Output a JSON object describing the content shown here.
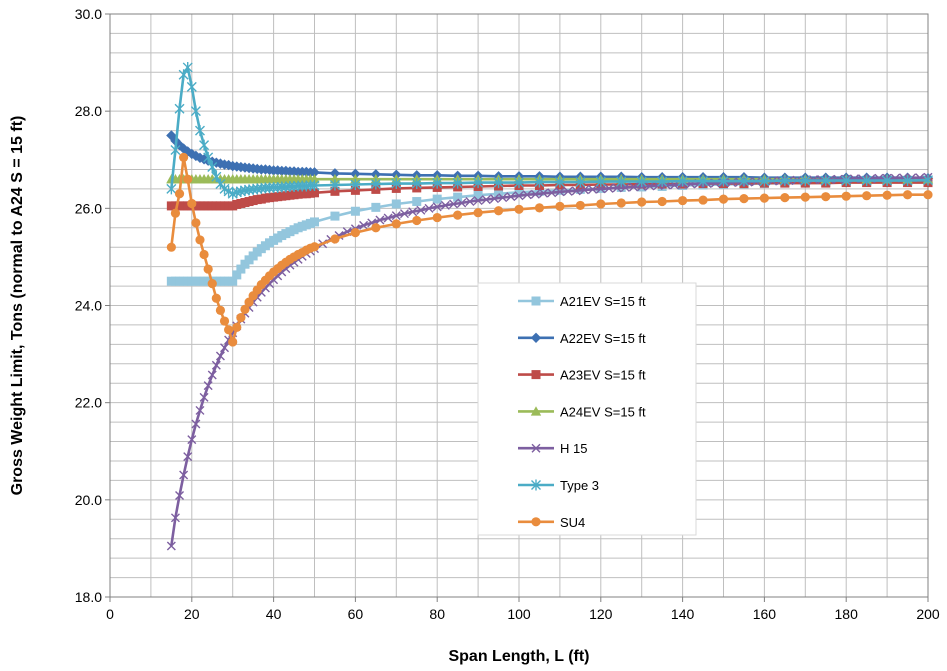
{
  "chart_data": {
    "type": "line",
    "title": "",
    "xlabel": "Span Length, L (ft)",
    "ylabel": "Gross Weight Limit, Tons (normal to A24 S = 15 ft)",
    "xlim": [
      0,
      200
    ],
    "ylim": [
      18.0,
      30.0
    ],
    "x_ticks": [
      0,
      20,
      40,
      60,
      80,
      100,
      120,
      140,
      160,
      180,
      200
    ],
    "y_ticks": [
      18.0,
      20.0,
      22.0,
      24.0,
      26.0,
      28.0,
      30.0
    ],
    "x_tick_labels": [
      "0",
      "20",
      "40",
      "60",
      "80",
      "100",
      "120",
      "140",
      "160",
      "180",
      "200"
    ],
    "y_tick_labels": [
      "18.0",
      "20.0",
      "22.0",
      "24.0",
      "26.0",
      "28.0",
      "30.0"
    ],
    "grid": true,
    "legend_position": "center-right",
    "series": [
      {
        "name": "A21EV S=15 ft",
        "color": "#93c6dd",
        "marker": "square",
        "x": [
          15,
          16,
          17,
          18,
          19,
          20,
          21,
          22,
          23,
          24,
          25,
          26,
          27,
          28,
          29,
          30,
          31,
          32,
          33,
          34,
          35,
          36,
          37,
          38,
          39,
          40,
          41,
          42,
          43,
          44,
          45,
          46,
          47,
          48,
          49,
          50,
          55,
          60,
          65,
          70,
          75,
          80,
          85,
          90,
          95,
          100,
          105,
          110,
          115,
          120,
          125,
          130,
          135,
          140,
          145,
          150,
          155,
          160,
          165,
          170,
          175,
          180,
          185,
          190,
          195,
          200
        ],
        "y": [
          24.5,
          24.5,
          24.5,
          24.5,
          24.5,
          24.5,
          24.5,
          24.5,
          24.5,
          24.5,
          24.5,
          24.5,
          24.5,
          24.5,
          24.5,
          24.5,
          24.63,
          24.75,
          24.85,
          24.94,
          25.02,
          25.1,
          25.17,
          25.23,
          25.29,
          25.34,
          25.39,
          25.44,
          25.48,
          25.52,
          25.56,
          25.6,
          25.63,
          25.66,
          25.69,
          25.72,
          25.84,
          25.94,
          26.02,
          26.09,
          26.14,
          26.19,
          26.23,
          26.27,
          26.3,
          26.33,
          26.35,
          26.37,
          26.39,
          26.41,
          26.43,
          26.44,
          26.45,
          26.47,
          26.48,
          26.49,
          26.5,
          26.51,
          26.52,
          26.52,
          26.53,
          26.54,
          26.54,
          26.55,
          26.55,
          26.56
        ]
      },
      {
        "name": "A22EV S=15 ft",
        "color": "#3d70b2",
        "marker": "diamond",
        "x": [
          15,
          16,
          17,
          18,
          19,
          20,
          21,
          22,
          23,
          24,
          25,
          26,
          27,
          28,
          29,
          30,
          31,
          32,
          33,
          34,
          35,
          36,
          37,
          38,
          39,
          40,
          41,
          42,
          43,
          44,
          45,
          46,
          47,
          48,
          49,
          50,
          55,
          60,
          65,
          70,
          75,
          80,
          85,
          90,
          95,
          100,
          105,
          110,
          115,
          120,
          125,
          130,
          135,
          140,
          145,
          150,
          155,
          160,
          165,
          170,
          175,
          180,
          185,
          190,
          195,
          200
        ],
        "y": [
          27.5,
          27.39,
          27.3,
          27.23,
          27.17,
          27.12,
          27.08,
          27.04,
          27.01,
          26.98,
          26.96,
          26.94,
          26.92,
          26.9,
          26.89,
          26.87,
          26.86,
          26.85,
          26.84,
          26.83,
          26.82,
          26.81,
          26.8,
          26.8,
          26.79,
          26.78,
          26.78,
          26.77,
          26.77,
          26.76,
          26.76,
          26.75,
          26.75,
          26.75,
          26.74,
          26.74,
          26.72,
          26.71,
          26.7,
          26.69,
          26.68,
          26.68,
          26.67,
          26.67,
          26.66,
          26.66,
          26.66,
          26.65,
          26.65,
          26.65,
          26.65,
          26.64,
          26.64,
          26.64,
          26.64,
          26.64,
          26.64,
          26.63,
          26.63,
          26.63,
          26.63,
          26.63,
          26.63,
          26.63,
          26.63,
          26.62
        ]
      },
      {
        "name": "A23EV S=15 ft",
        "color": "#be4b48",
        "marker": "square",
        "x": [
          15,
          16,
          17,
          18,
          19,
          20,
          21,
          22,
          23,
          24,
          25,
          26,
          27,
          28,
          29,
          30,
          31,
          32,
          33,
          34,
          35,
          36,
          37,
          38,
          39,
          40,
          41,
          42,
          43,
          44,
          45,
          46,
          47,
          48,
          49,
          50,
          55,
          60,
          65,
          70,
          75,
          80,
          85,
          90,
          95,
          100,
          105,
          110,
          115,
          120,
          125,
          130,
          135,
          140,
          145,
          150,
          155,
          160,
          165,
          170,
          175,
          180,
          185,
          190,
          195,
          200
        ],
        "y": [
          26.05,
          26.05,
          26.05,
          26.05,
          26.05,
          26.05,
          26.05,
          26.05,
          26.05,
          26.05,
          26.05,
          26.05,
          26.05,
          26.05,
          26.05,
          26.05,
          26.08,
          26.1,
          26.12,
          26.14,
          26.16,
          26.18,
          26.19,
          26.21,
          26.22,
          26.23,
          26.24,
          26.25,
          26.26,
          26.27,
          26.28,
          26.29,
          26.3,
          26.3,
          26.31,
          26.32,
          26.35,
          26.37,
          26.39,
          26.41,
          26.42,
          26.43,
          26.44,
          26.45,
          26.46,
          26.47,
          26.47,
          26.48,
          26.48,
          26.49,
          26.49,
          26.5,
          26.5,
          26.5,
          26.51,
          26.51,
          26.51,
          26.52,
          26.52,
          26.52,
          26.52,
          26.53,
          26.53,
          26.53,
          26.53,
          26.53
        ]
      },
      {
        "name": "A24EV S=15 ft",
        "color": "#9bbb59",
        "marker": "triangle",
        "x": [
          15,
          16,
          17,
          18,
          19,
          20,
          21,
          22,
          23,
          24,
          25,
          26,
          27,
          28,
          29,
          30,
          31,
          32,
          33,
          34,
          35,
          36,
          37,
          38,
          39,
          40,
          41,
          42,
          43,
          44,
          45,
          46,
          47,
          48,
          49,
          50,
          55,
          60,
          65,
          70,
          75,
          80,
          85,
          90,
          95,
          100,
          105,
          110,
          115,
          120,
          125,
          130,
          135,
          140,
          145,
          150,
          155,
          160,
          165,
          170,
          175,
          180,
          185,
          190,
          195,
          200
        ],
        "y": [
          26.6,
          26.6,
          26.6,
          26.6,
          26.6,
          26.6,
          26.6,
          26.6,
          26.6,
          26.6,
          26.6,
          26.6,
          26.6,
          26.6,
          26.6,
          26.6,
          26.6,
          26.6,
          26.6,
          26.6,
          26.6,
          26.6,
          26.6,
          26.6,
          26.6,
          26.6,
          26.6,
          26.6,
          26.6,
          26.6,
          26.6,
          26.6,
          26.6,
          26.6,
          26.6,
          26.6,
          26.6,
          26.6,
          26.6,
          26.6,
          26.6,
          26.6,
          26.6,
          26.6,
          26.6,
          26.6,
          26.6,
          26.6,
          26.6,
          26.6,
          26.6,
          26.6,
          26.6,
          26.6,
          26.6,
          26.6,
          26.6,
          26.6,
          26.6,
          26.6,
          26.6,
          26.6,
          26.6,
          26.6,
          26.6,
          26.6
        ]
      },
      {
        "name": "H 15",
        "color": "#7d5fa0",
        "marker": "x",
        "x": [
          15,
          16,
          17,
          18,
          19,
          20,
          21,
          22,
          23,
          24,
          25,
          26,
          27,
          28,
          29,
          30,
          31,
          32,
          33,
          34,
          35,
          36,
          37,
          38,
          39,
          40,
          41,
          42,
          43,
          44,
          45,
          46,
          47,
          48,
          49,
          50,
          52,
          54,
          56,
          58,
          60,
          62,
          64,
          66,
          68,
          70,
          72,
          74,
          76,
          78,
          80,
          82,
          84,
          86,
          88,
          90,
          92,
          94,
          96,
          98,
          100,
          102,
          104,
          106,
          108,
          110,
          112,
          114,
          116,
          118,
          120,
          122,
          124,
          126,
          128,
          130,
          132,
          134,
          136,
          138,
          140,
          142,
          144,
          146,
          148,
          150,
          152,
          154,
          156,
          158,
          160,
          162,
          164,
          166,
          168,
          170,
          172,
          174,
          176,
          178,
          180,
          182,
          184,
          186,
          188,
          190,
          192,
          194,
          196,
          198,
          200
        ],
        "y": [
          19.05,
          19.63,
          20.09,
          20.51,
          20.89,
          21.24,
          21.56,
          21.84,
          22.11,
          22.35,
          22.57,
          22.77,
          22.96,
          23.13,
          23.29,
          23.44,
          23.58,
          23.72,
          23.84,
          23.96,
          24.07,
          24.17,
          24.27,
          24.36,
          24.45,
          24.53,
          24.61,
          24.69,
          24.76,
          24.83,
          24.89,
          24.95,
          25.01,
          25.07,
          25.12,
          25.17,
          25.27,
          25.36,
          25.44,
          25.52,
          25.58,
          25.65,
          25.7,
          25.76,
          25.8,
          25.85,
          25.89,
          25.93,
          25.96,
          26.0,
          26.03,
          26.06,
          26.09,
          26.11,
          26.14,
          26.16,
          26.18,
          26.2,
          26.22,
          26.24,
          26.26,
          26.28,
          26.29,
          26.31,
          26.32,
          26.34,
          26.35,
          26.36,
          26.38,
          26.39,
          26.4,
          26.41,
          26.42,
          26.43,
          26.44,
          26.45,
          26.46,
          26.47,
          26.48,
          26.48,
          26.49,
          26.5,
          26.51,
          26.51,
          26.52,
          26.53,
          26.53,
          26.54,
          26.54,
          26.55,
          26.56,
          26.56,
          26.57,
          26.57,
          26.58,
          26.58,
          26.59,
          26.59,
          26.59,
          26.6,
          26.6,
          26.61,
          26.61,
          26.61,
          26.62,
          26.62,
          26.62,
          26.63,
          26.63,
          26.63,
          26.64
        ]
      },
      {
        "name": "Type 3",
        "color": "#4bacc6",
        "marker": "asterisk",
        "x": [
          15,
          16,
          17,
          18,
          19,
          20,
          21,
          22,
          23,
          24,
          25,
          26,
          27,
          28,
          29,
          30,
          31,
          32,
          33,
          34,
          35,
          36,
          37,
          38,
          39,
          40,
          41,
          42,
          43,
          44,
          45,
          46,
          47,
          48,
          49,
          50,
          55,
          60,
          65,
          70,
          75,
          80,
          85,
          90,
          95,
          100,
          105,
          110,
          115,
          120,
          125,
          130,
          135,
          140,
          145,
          150,
          155,
          160,
          165,
          170,
          175,
          180,
          185,
          190,
          195,
          200
        ],
        "y": [
          26.4,
          27.2,
          28.05,
          28.75,
          28.9,
          28.5,
          28.0,
          27.6,
          27.3,
          27.05,
          26.85,
          26.65,
          26.5,
          26.4,
          26.35,
          26.3,
          26.33,
          26.35,
          26.37,
          26.38,
          26.39,
          26.4,
          26.41,
          26.42,
          26.42,
          26.43,
          26.43,
          26.44,
          26.44,
          26.45,
          26.45,
          26.46,
          26.46,
          26.46,
          26.47,
          26.47,
          26.48,
          26.49,
          26.5,
          26.51,
          26.51,
          26.52,
          26.52,
          26.53,
          26.53,
          26.53,
          26.54,
          26.54,
          26.54,
          26.55,
          26.55,
          26.55,
          26.55,
          26.56,
          26.56,
          26.56,
          26.56,
          26.56,
          26.57,
          26.57,
          26.57,
          26.57,
          26.57,
          26.57,
          26.57,
          26.58
        ]
      },
      {
        "name": "SU4",
        "color": "#e98c3d",
        "marker": "circle",
        "x": [
          15,
          16,
          17,
          18,
          19,
          20,
          21,
          22,
          23,
          24,
          25,
          26,
          27,
          28,
          29,
          30,
          31,
          32,
          33,
          34,
          35,
          36,
          37,
          38,
          39,
          40,
          41,
          42,
          43,
          44,
          45,
          46,
          47,
          48,
          49,
          50,
          55,
          60,
          65,
          70,
          75,
          80,
          85,
          90,
          95,
          100,
          105,
          110,
          115,
          120,
          125,
          130,
          135,
          140,
          145,
          150,
          155,
          160,
          165,
          170,
          175,
          180,
          185,
          190,
          195,
          200
        ],
        "y": [
          25.2,
          25.9,
          26.3,
          27.05,
          26.6,
          26.1,
          25.7,
          25.35,
          25.05,
          24.75,
          24.45,
          24.15,
          23.9,
          23.68,
          23.5,
          23.25,
          23.55,
          23.75,
          23.92,
          24.07,
          24.2,
          24.32,
          24.43,
          24.52,
          24.61,
          24.69,
          24.76,
          24.83,
          24.89,
          24.95,
          25.0,
          25.05,
          25.09,
          25.14,
          25.18,
          25.21,
          25.37,
          25.5,
          25.6,
          25.68,
          25.75,
          25.81,
          25.86,
          25.91,
          25.95,
          25.98,
          26.01,
          26.04,
          26.06,
          26.09,
          26.11,
          26.13,
          26.14,
          26.16,
          26.17,
          26.19,
          26.2,
          26.21,
          26.22,
          26.23,
          26.24,
          26.25,
          26.26,
          26.27,
          26.28,
          26.28
        ]
      }
    ]
  }
}
